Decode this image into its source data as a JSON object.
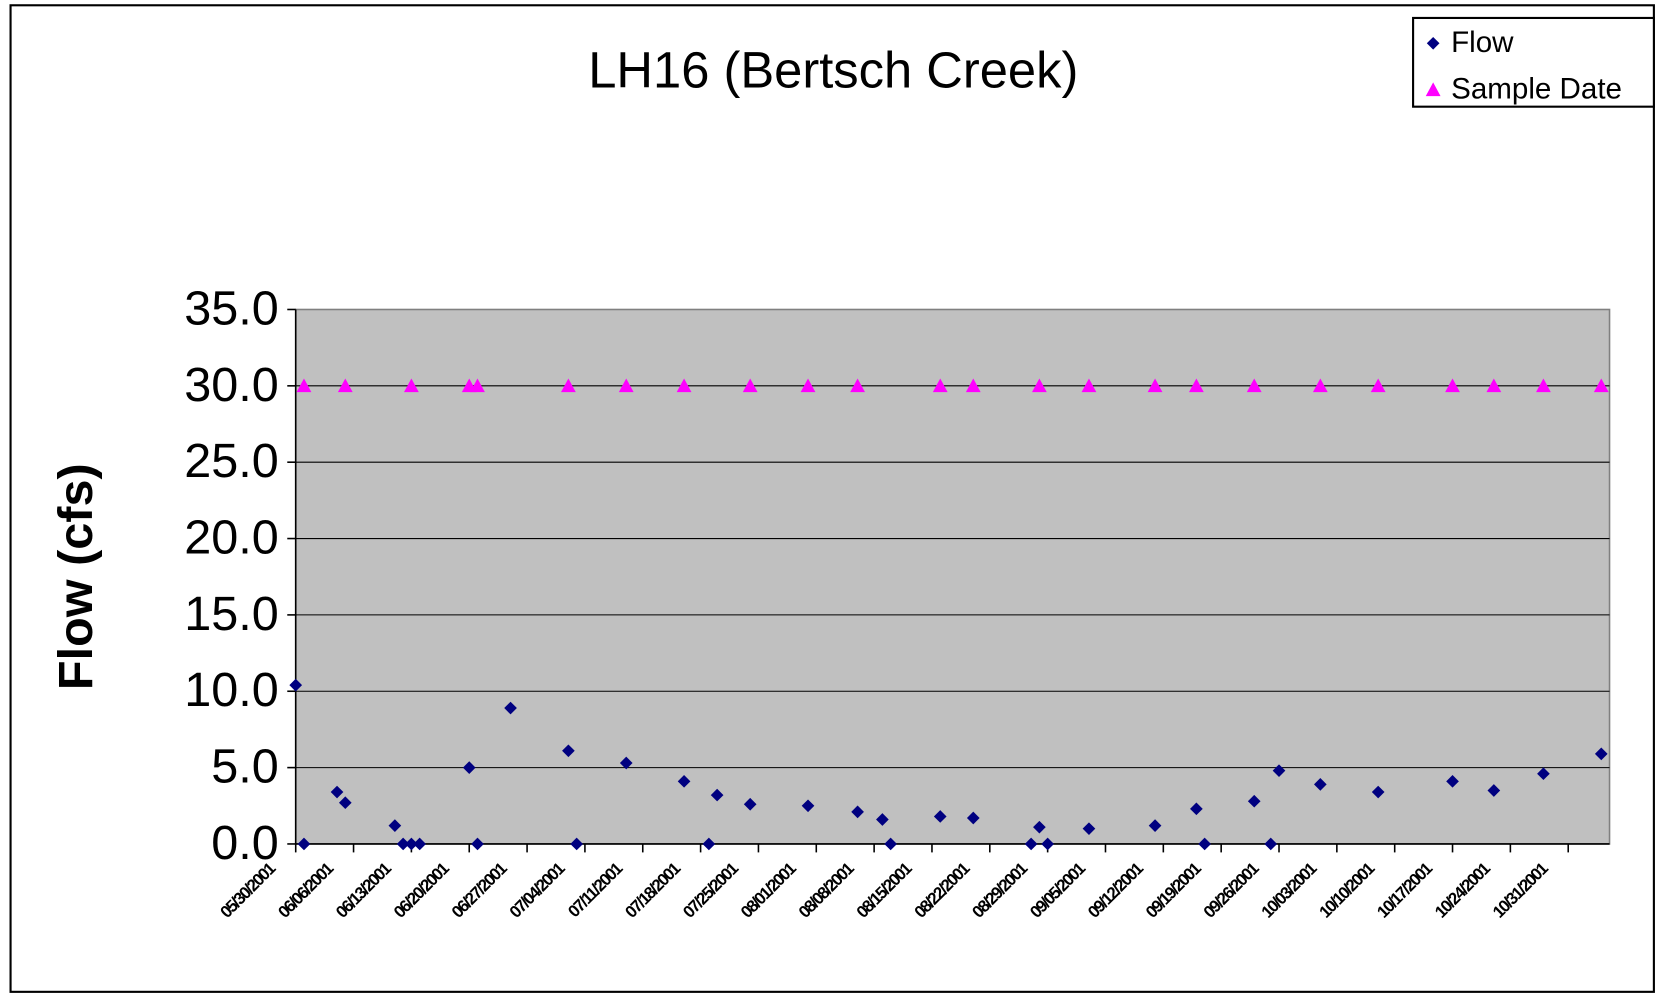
{
  "chart_data": {
    "type": "scatter",
    "title": "LH16 (Bertsch Creek)",
    "y_label": "Flow (cfs)",
    "xlim": [
      "05/30/2001",
      "11/05/2001"
    ],
    "xticks": [
      "05/30/2001",
      "06/06/2001",
      "06/13/2001",
      "06/20/2001",
      "06/27/2001",
      "07/04/2001",
      "07/11/2001",
      "07/18/2001",
      "07/25/2001",
      "08/01/2001",
      "08/08/2001",
      "08/15/2001",
      "08/22/2001",
      "08/29/2001",
      "09/05/2001",
      "09/12/2001",
      "09/19/2001",
      "09/26/2001",
      "10/03/2001",
      "10/10/2001",
      "10/17/2001",
      "10/24/2001",
      "10/31/2001"
    ],
    "ylim": [
      0,
      35
    ],
    "yticks": [
      {
        "value": 0,
        "label": "0.0"
      },
      {
        "value": 5,
        "label": "5.0"
      },
      {
        "value": 10,
        "label": "10.0"
      },
      {
        "value": 15,
        "label": "15.0"
      },
      {
        "value": 20,
        "label": "20.0"
      },
      {
        "value": 25,
        "label": "25.0"
      },
      {
        "value": 30,
        "label": "30.0"
      },
      {
        "value": 35,
        "label": "35.0"
      }
    ],
    "grid": true,
    "legend": "top-right",
    "series": [
      {
        "name": "Flow",
        "color": "#000080",
        "marker": "diamond",
        "x": [
          "05/30/2001",
          "05/31/2001",
          "06/04/2001",
          "06/05/2001",
          "06/11/2001",
          "06/12/2001",
          "06/13/2001",
          "06/14/2001",
          "06/20/2001",
          "06/21/2001",
          "06/25/2001",
          "07/02/2001",
          "07/03/2001",
          "07/09/2001",
          "07/16/2001",
          "07/19/2001",
          "07/20/2001",
          "07/24/2001",
          "07/31/2001",
          "08/06/2001",
          "08/09/2001",
          "08/10/2001",
          "08/16/2001",
          "08/20/2001",
          "08/27/2001",
          "08/28/2001",
          "08/29/2001",
          "09/03/2001",
          "09/11/2001",
          "09/16/2001",
          "09/17/2001",
          "09/23/2001",
          "09/25/2001",
          "09/26/2001",
          "10/01/2001",
          "10/08/2001",
          "10/17/2001",
          "10/22/2001",
          "10/28/2001",
          "11/04/2001"
        ],
        "values": [
          10.4,
          0,
          3.4,
          2.7,
          1.2,
          0,
          0,
          0,
          5.0,
          0,
          8.9,
          6.1,
          0,
          5.3,
          4.1,
          0,
          3.2,
          2.6,
          2.5,
          2.1,
          1.6,
          0,
          1.8,
          1.7,
          0,
          1.1,
          0,
          1.0,
          1.2,
          2.3,
          0,
          2.8,
          0,
          4.8,
          3.9,
          3.4,
          4.1,
          3.5,
          4.6,
          5.9
        ]
      },
      {
        "name": "Sample Date",
        "color": "#ff00ff",
        "marker": "triangle",
        "x": [
          "05/31/2001",
          "06/05/2001",
          "06/13/2001",
          "06/20/2001",
          "06/21/2001",
          "07/02/2001",
          "07/09/2001",
          "07/16/2001",
          "07/24/2001",
          "07/31/2001",
          "08/06/2001",
          "08/16/2001",
          "08/20/2001",
          "08/28/2001",
          "09/03/2001",
          "09/11/2001",
          "09/16/2001",
          "09/23/2001",
          "10/01/2001",
          "10/08/2001",
          "10/17/2001",
          "10/22/2001",
          "10/28/2001",
          "11/04/2001"
        ],
        "values": [
          30,
          30,
          30,
          30,
          30,
          30,
          30,
          30,
          30,
          30,
          30,
          30,
          30,
          30,
          30,
          30,
          30,
          30,
          30,
          30,
          30,
          30,
          30,
          30
        ]
      }
    ]
  }
}
